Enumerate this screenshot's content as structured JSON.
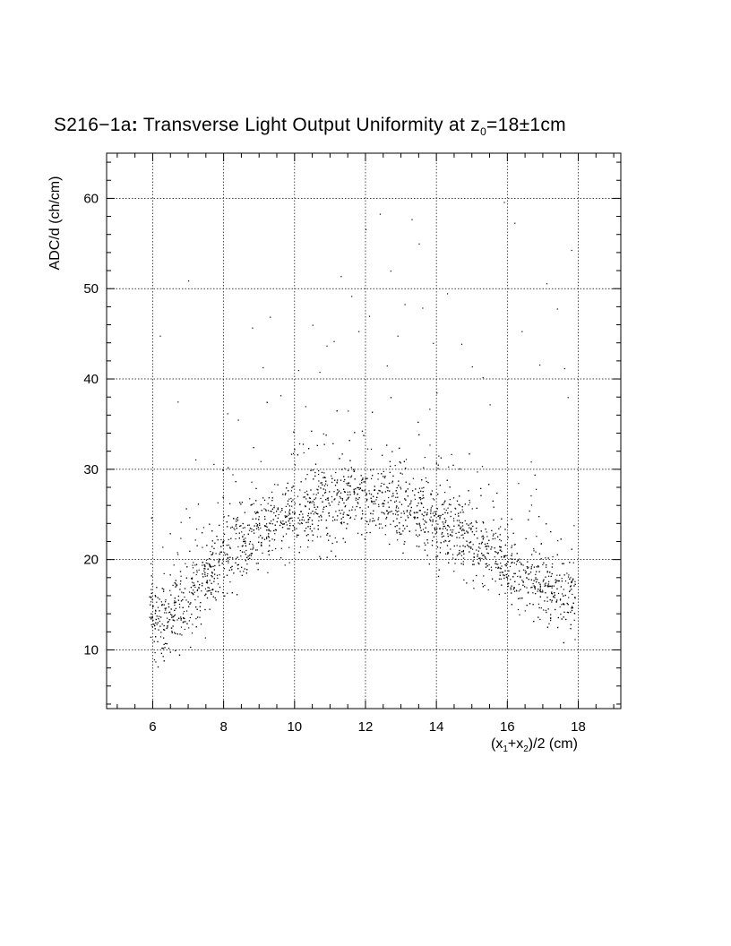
{
  "chart_data": {
    "type": "scatter",
    "title": {
      "prefix": "S216−1a",
      "colon": ":",
      "text": " Transverse Light Output Uniformity at z",
      "subscript": "0",
      "suffix": "=18±1cm"
    },
    "xlabel": {
      "a": "(x",
      "s1": "1",
      "b": "+x",
      "s2": "2",
      "c": ")/2 (cm)"
    },
    "ylabel": "ADC/d (ch/cm)",
    "xlim": [
      4.7,
      19.2
    ],
    "ylim": [
      3.5,
      65
    ],
    "xticks": [
      6,
      8,
      10,
      12,
      14,
      16,
      18
    ],
    "xticklabels": [
      "6",
      "8",
      "10",
      "12",
      "14",
      "16",
      "18"
    ],
    "yticks": [
      10,
      20,
      30,
      40,
      50,
      60
    ],
    "yticklabels": [
      "10",
      "20",
      "30",
      "40",
      "50",
      "60"
    ],
    "grid": true,
    "marker_color": "#000000",
    "series": [
      {
        "points_note_x_range": [
          5.9,
          17.9
        ],
        "band": [
          [
            6.0,
            12.5,
            3.0
          ],
          [
            6.5,
            14.0,
            3.0
          ],
          [
            7.0,
            16.0,
            3.0
          ],
          [
            7.5,
            18.0,
            3.0
          ],
          [
            8.0,
            20.5,
            3.0
          ],
          [
            8.5,
            22.0,
            3.0
          ],
          [
            9.0,
            23.0,
            3.0
          ],
          [
            9.5,
            24.0,
            3.0
          ],
          [
            10.0,
            25.0,
            3.0
          ],
          [
            10.5,
            25.8,
            3.0
          ],
          [
            11.0,
            26.3,
            3.0
          ],
          [
            11.5,
            26.8,
            3.0
          ],
          [
            12.0,
            27.0,
            3.0
          ],
          [
            12.5,
            26.5,
            3.0
          ],
          [
            13.0,
            25.8,
            3.0
          ],
          [
            13.5,
            25.0,
            3.0
          ],
          [
            14.0,
            24.0,
            3.0
          ],
          [
            14.5,
            23.0,
            3.0
          ],
          [
            15.0,
            22.0,
            3.0
          ],
          [
            15.5,
            21.0,
            3.0
          ],
          [
            16.0,
            19.5,
            3.0
          ],
          [
            16.5,
            18.0,
            3.0
          ],
          [
            17.0,
            17.0,
            3.0
          ],
          [
            17.5,
            16.5,
            3.0
          ],
          [
            17.9,
            16.0,
            3.0
          ]
        ],
        "outliers": [
          [
            6.2,
            44.8
          ],
          [
            6.7,
            37.5
          ],
          [
            7.0,
            50.9
          ],
          [
            7.2,
            31.1
          ],
          [
            8.1,
            36.2
          ],
          [
            8.4,
            35.5
          ],
          [
            8.8,
            45.7
          ],
          [
            9.1,
            41.3
          ],
          [
            9.3,
            46.9
          ],
          [
            9.6,
            38.2
          ],
          [
            10.1,
            41.0
          ],
          [
            10.5,
            46.0
          ],
          [
            10.7,
            40.8
          ],
          [
            10.9,
            43.7
          ],
          [
            11.1,
            44.2
          ],
          [
            11.3,
            51.4
          ],
          [
            11.6,
            49.2
          ],
          [
            11.8,
            45.3
          ],
          [
            12.0,
            56.6
          ],
          [
            12.1,
            47.0
          ],
          [
            12.4,
            58.3
          ],
          [
            12.6,
            41.5
          ],
          [
            12.7,
            52.0
          ],
          [
            12.9,
            44.8
          ],
          [
            13.1,
            48.3
          ],
          [
            13.3,
            57.7
          ],
          [
            13.5,
            55.0
          ],
          [
            13.6,
            47.9
          ],
          [
            13.9,
            44.0
          ],
          [
            14.0,
            38.5
          ],
          [
            14.3,
            49.5
          ],
          [
            14.7,
            43.9
          ],
          [
            15.0,
            41.4
          ],
          [
            15.3,
            40.2
          ],
          [
            15.9,
            59.6
          ],
          [
            16.2,
            57.3
          ],
          [
            16.4,
            45.3
          ],
          [
            16.9,
            41.6
          ],
          [
            17.1,
            50.6
          ],
          [
            17.4,
            47.8
          ],
          [
            17.6,
            41.2
          ],
          [
            17.8,
            54.3
          ],
          [
            17.7,
            38.0
          ],
          [
            15.5,
            37.2
          ],
          [
            10.3,
            37.0
          ],
          [
            11.5,
            36.5
          ],
          [
            13.8,
            36.7
          ]
        ],
        "point_count": 3200
      }
    ]
  }
}
